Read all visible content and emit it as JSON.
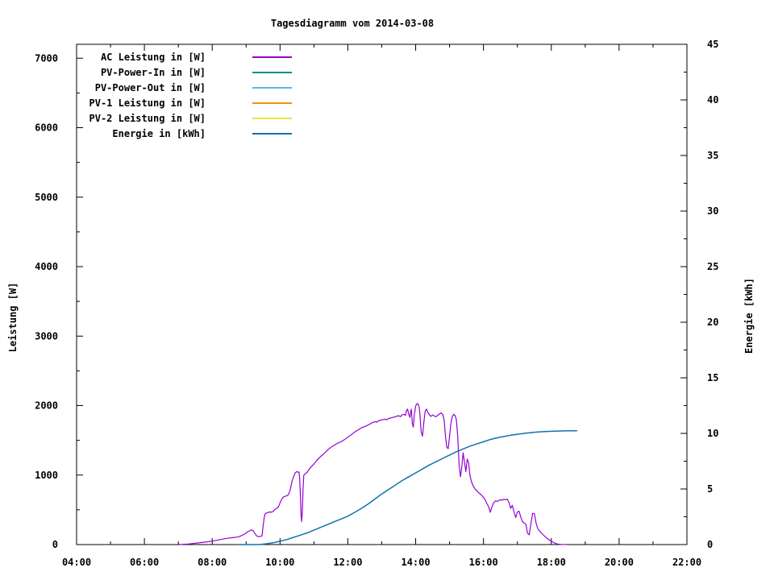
{
  "chart_data": {
    "type": "line",
    "title": "Tagesdiagramm vom 2014-03-08",
    "x_axis": {
      "range_hours": [
        4,
        22
      ],
      "tick_hours": [
        4,
        6,
        8,
        10,
        12,
        14,
        16,
        18,
        20,
        22
      ],
      "tick_labels": [
        "04:00",
        "06:00",
        "08:00",
        "10:00",
        "12:00",
        "14:00",
        "16:00",
        "18:00",
        "20:00",
        "22:00"
      ],
      "minor_tick_hours": [
        5,
        7,
        9,
        11,
        13,
        15,
        17,
        19,
        21
      ]
    },
    "left_axis": {
      "label": "Leistung [W]",
      "range": [
        0,
        7200
      ],
      "major_ticks": [
        0,
        1000,
        2000,
        3000,
        4000,
        5000,
        6000,
        7000
      ],
      "minor_ticks": [
        500,
        1500,
        2500,
        3500,
        4500,
        5500,
        6500
      ]
    },
    "right_axis": {
      "label": "Energie [kWh]",
      "range": [
        0,
        45
      ],
      "major_ticks": [
        0,
        5,
        10,
        15,
        20,
        25,
        30,
        35,
        40,
        45
      ],
      "minor_ticks": [
        2.5,
        7.5,
        12.5,
        17.5,
        22.5,
        27.5,
        32.5,
        37.5,
        42.5
      ]
    },
    "grid": false,
    "legend_position": "inside-top-left",
    "frame_color": "#000000",
    "background_color": "#ffffff",
    "series": [
      {
        "name": "AC Leistung in [W]",
        "axis": "left",
        "color": "#9400d3",
        "width": 1.2,
        "points": [
          [
            7.05,
            0
          ],
          [
            7.1,
            2
          ],
          [
            7.3,
            8
          ],
          [
            7.5,
            18
          ],
          [
            7.7,
            30
          ],
          [
            7.9,
            42
          ],
          [
            8.0,
            50
          ],
          [
            8.15,
            62
          ],
          [
            8.3,
            78
          ],
          [
            8.45,
            90
          ],
          [
            8.6,
            100
          ],
          [
            8.75,
            108
          ],
          [
            8.85,
            125
          ],
          [
            8.95,
            150
          ],
          [
            9.05,
            185
          ],
          [
            9.15,
            210
          ],
          [
            9.2,
            205
          ],
          [
            9.25,
            165
          ],
          [
            9.3,
            130
          ],
          [
            9.35,
            112
          ],
          [
            9.42,
            118
          ],
          [
            9.47,
            125
          ],
          [
            9.5,
            260
          ],
          [
            9.53,
            380
          ],
          [
            9.56,
            440
          ],
          [
            9.6,
            455
          ],
          [
            9.65,
            462
          ],
          [
            9.7,
            470
          ],
          [
            9.75,
            465
          ],
          [
            9.8,
            480
          ],
          [
            9.85,
            505
          ],
          [
            9.9,
            520
          ],
          [
            9.95,
            540
          ],
          [
            10.0,
            600
          ],
          [
            10.05,
            650
          ],
          [
            10.1,
            685
          ],
          [
            10.15,
            695
          ],
          [
            10.2,
            700
          ],
          [
            10.25,
            720
          ],
          [
            10.3,
            790
          ],
          [
            10.35,
            905
          ],
          [
            10.4,
            980
          ],
          [
            10.45,
            1035
          ],
          [
            10.5,
            1050
          ],
          [
            10.53,
            1040
          ],
          [
            10.56,
            1045
          ],
          [
            10.58,
            950
          ],
          [
            10.6,
            700
          ],
          [
            10.62,
            430
          ],
          [
            10.64,
            330
          ],
          [
            10.66,
            520
          ],
          [
            10.68,
            800
          ],
          [
            10.7,
            1000
          ],
          [
            10.73,
            1010
          ],
          [
            10.76,
            1025
          ],
          [
            10.8,
            1040
          ],
          [
            10.85,
            1080
          ],
          [
            10.9,
            1110
          ],
          [
            10.95,
            1135
          ],
          [
            11.0,
            1160
          ],
          [
            11.1,
            1220
          ],
          [
            11.2,
            1270
          ],
          [
            11.3,
            1310
          ],
          [
            11.4,
            1360
          ],
          [
            11.5,
            1400
          ],
          [
            11.6,
            1430
          ],
          [
            11.7,
            1460
          ],
          [
            11.8,
            1480
          ],
          [
            11.9,
            1510
          ],
          [
            12.0,
            1545
          ],
          [
            12.1,
            1580
          ],
          [
            12.2,
            1620
          ],
          [
            12.3,
            1650
          ],
          [
            12.4,
            1680
          ],
          [
            12.5,
            1700
          ],
          [
            12.6,
            1720
          ],
          [
            12.7,
            1750
          ],
          [
            12.8,
            1770
          ],
          [
            12.85,
            1760
          ],
          [
            12.9,
            1780
          ],
          [
            13.0,
            1795
          ],
          [
            13.1,
            1805
          ],
          [
            13.15,
            1795
          ],
          [
            13.2,
            1815
          ],
          [
            13.3,
            1825
          ],
          [
            13.4,
            1840
          ],
          [
            13.5,
            1855
          ],
          [
            13.55,
            1840
          ],
          [
            13.6,
            1865
          ],
          [
            13.65,
            1875
          ],
          [
            13.7,
            1860
          ],
          [
            13.73,
            1930
          ],
          [
            13.76,
            1950
          ],
          [
            13.8,
            1870
          ],
          [
            13.83,
            1830
          ],
          [
            13.87,
            1950
          ],
          [
            13.9,
            1745
          ],
          [
            13.93,
            1690
          ],
          [
            13.96,
            1870
          ],
          [
            14.0,
            1995
          ],
          [
            14.03,
            2020
          ],
          [
            14.06,
            2030
          ],
          [
            14.1,
            1990
          ],
          [
            14.13,
            1850
          ],
          [
            14.16,
            1630
          ],
          [
            14.2,
            1560
          ],
          [
            14.24,
            1750
          ],
          [
            14.28,
            1915
          ],
          [
            14.32,
            1950
          ],
          [
            14.36,
            1900
          ],
          [
            14.4,
            1870
          ],
          [
            14.45,
            1845
          ],
          [
            14.5,
            1865
          ],
          [
            14.55,
            1850
          ],
          [
            14.6,
            1840
          ],
          [
            14.65,
            1860
          ],
          [
            14.7,
            1880
          ],
          [
            14.75,
            1895
          ],
          [
            14.8,
            1870
          ],
          [
            14.84,
            1790
          ],
          [
            14.88,
            1550
          ],
          [
            14.92,
            1400
          ],
          [
            14.96,
            1380
          ],
          [
            15.0,
            1560
          ],
          [
            15.04,
            1750
          ],
          [
            15.08,
            1840
          ],
          [
            15.12,
            1875
          ],
          [
            15.16,
            1860
          ],
          [
            15.2,
            1800
          ],
          [
            15.24,
            1560
          ],
          [
            15.28,
            1150
          ],
          [
            15.32,
            975
          ],
          [
            15.36,
            1120
          ],
          [
            15.4,
            1320
          ],
          [
            15.44,
            1190
          ],
          [
            15.48,
            1050
          ],
          [
            15.52,
            1230
          ],
          [
            15.56,
            1180
          ],
          [
            15.6,
            1000
          ],
          [
            15.65,
            900
          ],
          [
            15.7,
            840
          ],
          [
            15.75,
            800
          ],
          [
            15.8,
            775
          ],
          [
            15.85,
            750
          ],
          [
            15.9,
            730
          ],
          [
            15.95,
            705
          ],
          [
            16.0,
            680
          ],
          [
            16.05,
            640
          ],
          [
            16.1,
            590
          ],
          [
            16.15,
            545
          ],
          [
            16.2,
            465
          ],
          [
            16.25,
            545
          ],
          [
            16.3,
            600
          ],
          [
            16.35,
            630
          ],
          [
            16.4,
            620
          ],
          [
            16.45,
            635
          ],
          [
            16.5,
            645
          ],
          [
            16.55,
            640
          ],
          [
            16.6,
            650
          ],
          [
            16.65,
            645
          ],
          [
            16.7,
            655
          ],
          [
            16.75,
            610
          ],
          [
            16.8,
            520
          ],
          [
            16.85,
            565
          ],
          [
            16.9,
            470
          ],
          [
            16.95,
            390
          ],
          [
            17.0,
            470
          ],
          [
            17.05,
            480
          ],
          [
            17.1,
            395
          ],
          [
            17.15,
            330
          ],
          [
            17.2,
            310
          ],
          [
            17.25,
            295
          ],
          [
            17.3,
            165
          ],
          [
            17.35,
            140
          ],
          [
            17.4,
            300
          ],
          [
            17.45,
            450
          ],
          [
            17.5,
            445
          ],
          [
            17.55,
            310
          ],
          [
            17.6,
            230
          ],
          [
            17.65,
            195
          ],
          [
            17.7,
            170
          ],
          [
            17.75,
            145
          ],
          [
            17.8,
            120
          ],
          [
            17.85,
            100
          ],
          [
            17.9,
            80
          ],
          [
            17.95,
            62
          ],
          [
            18.0,
            48
          ],
          [
            18.05,
            35
          ],
          [
            18.1,
            22
          ],
          [
            18.15,
            12
          ],
          [
            18.2,
            6
          ],
          [
            18.3,
            2
          ],
          [
            18.45,
            0
          ]
        ]
      },
      {
        "name": "PV-Power-In in [W]",
        "axis": "left",
        "color": "#00917c",
        "width": 1.5,
        "points": []
      },
      {
        "name": "PV-Power-Out in [W]",
        "axis": "left",
        "color": "#5fb4e6",
        "width": 1.5,
        "points": []
      },
      {
        "name": "PV-1 Leistung in [W]",
        "axis": "left",
        "color": "#e09b00",
        "width": 1.5,
        "points": []
      },
      {
        "name": "PV-2 Leistung in [W]",
        "axis": "left",
        "color": "#ede43e",
        "width": 1.5,
        "points": []
      },
      {
        "name": "Energie in [kWh]",
        "axis": "right",
        "color": "#1172ad",
        "width": 1.5,
        "points": [
          [
            8.8,
            0
          ],
          [
            9.4,
            0
          ],
          [
            9.6,
            0.07
          ],
          [
            9.8,
            0.16
          ],
          [
            10.0,
            0.3
          ],
          [
            10.2,
            0.45
          ],
          [
            10.4,
            0.65
          ],
          [
            10.6,
            0.85
          ],
          [
            10.8,
            1.05
          ],
          [
            11.0,
            1.3
          ],
          [
            11.2,
            1.55
          ],
          [
            11.4,
            1.8
          ],
          [
            11.6,
            2.05
          ],
          [
            11.8,
            2.3
          ],
          [
            12.0,
            2.55
          ],
          [
            12.2,
            2.9
          ],
          [
            12.4,
            3.25
          ],
          [
            12.6,
            3.65
          ],
          [
            12.8,
            4.1
          ],
          [
            13.0,
            4.55
          ],
          [
            13.2,
            4.95
          ],
          [
            13.4,
            5.35
          ],
          [
            13.6,
            5.75
          ],
          [
            13.8,
            6.1
          ],
          [
            14.0,
            6.45
          ],
          [
            14.2,
            6.8
          ],
          [
            14.4,
            7.15
          ],
          [
            14.6,
            7.45
          ],
          [
            14.8,
            7.75
          ],
          [
            15.0,
            8.05
          ],
          [
            15.2,
            8.35
          ],
          [
            15.4,
            8.6
          ],
          [
            15.6,
            8.85
          ],
          [
            15.8,
            9.05
          ],
          [
            16.0,
            9.25
          ],
          [
            16.2,
            9.45
          ],
          [
            16.4,
            9.6
          ],
          [
            16.6,
            9.72
          ],
          [
            16.8,
            9.83
          ],
          [
            17.0,
            9.92
          ],
          [
            17.2,
            10.0
          ],
          [
            17.4,
            10.07
          ],
          [
            17.6,
            10.12
          ],
          [
            17.8,
            10.16
          ],
          [
            18.0,
            10.19
          ],
          [
            18.2,
            10.21
          ],
          [
            18.5,
            10.23
          ],
          [
            18.75,
            10.24
          ]
        ]
      }
    ]
  }
}
